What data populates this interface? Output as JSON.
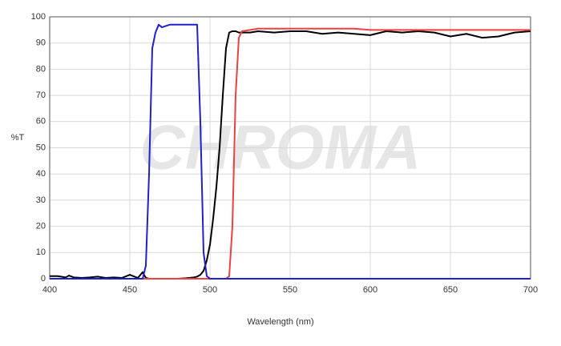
{
  "chart_data": {
    "type": "line",
    "watermark": "CHROMA",
    "xlabel": "Wavelength (nm)",
    "ylabel": "%T",
    "x": [
      400,
      405,
      410,
      412,
      415,
      420,
      425,
      430,
      435,
      440,
      445,
      450,
      455,
      458,
      460,
      462,
      464,
      466,
      468,
      470,
      475,
      480,
      485,
      490,
      492,
      494,
      496,
      498,
      500,
      502,
      504,
      506,
      508,
      510,
      512,
      514,
      516,
      518,
      520,
      525,
      530,
      540,
      550,
      560,
      570,
      580,
      590,
      600,
      610,
      620,
      630,
      640,
      650,
      660,
      670,
      680,
      690,
      700
    ],
    "series": [
      {
        "color": "#000000",
        "values": [
          1,
          1,
          0.5,
          1.2,
          0.5,
          0.3,
          0.5,
          0.8,
          0.3,
          0.5,
          0.3,
          1.5,
          0.3,
          2.5,
          0.3,
          0,
          0,
          0,
          0,
          0,
          0,
          0,
          0.2,
          0.5,
          0.8,
          1.5,
          3,
          7,
          13,
          23,
          35,
          50,
          70,
          88,
          94,
          94.5,
          94.5,
          94,
          94,
          94,
          94.5,
          94,
          94.5,
          94.5,
          93.5,
          94,
          93.5,
          93,
          94.5,
          94,
          94.5,
          94,
          92.5,
          93.5,
          92,
          92.5,
          94,
          94.5
        ]
      },
      {
        "color": "#ee4040",
        "values": [
          0,
          0,
          0,
          0,
          0,
          0,
          0,
          0,
          0,
          0,
          0,
          0,
          0,
          0,
          0,
          0,
          0,
          0,
          0,
          0,
          0,
          0,
          0,
          0,
          0,
          0,
          0,
          0,
          0,
          0,
          0,
          0,
          0,
          0,
          1,
          20,
          70,
          92,
          94.5,
          95,
          95.5,
          95.5,
          95.5,
          95.5,
          95.5,
          95.5,
          95.5,
          95,
          95,
          95,
          95,
          95,
          95,
          95,
          95,
          95,
          95,
          95
        ]
      },
      {
        "color": "#2020cc",
        "values": [
          0,
          0,
          0,
          0,
          0,
          0,
          0,
          0,
          0,
          0,
          0,
          0,
          0,
          0,
          5,
          40,
          88,
          94,
          97,
          96,
          97,
          97,
          97,
          97,
          97,
          60,
          10,
          1,
          0,
          0,
          0,
          0,
          0,
          0,
          0,
          0,
          0,
          0,
          0,
          0,
          0,
          0,
          0,
          0,
          0,
          0,
          0,
          0,
          0,
          0,
          0,
          0,
          0,
          0,
          0,
          0,
          0,
          0
        ]
      }
    ],
    "xlim": [
      400,
      700
    ],
    "xticks": [
      400,
      450,
      500,
      550,
      600,
      650,
      700
    ],
    "ylim": [
      0,
      100
    ],
    "yticks": [
      0,
      10,
      20,
      30,
      40,
      50,
      60,
      70,
      80,
      90,
      100
    ],
    "grid": true
  }
}
